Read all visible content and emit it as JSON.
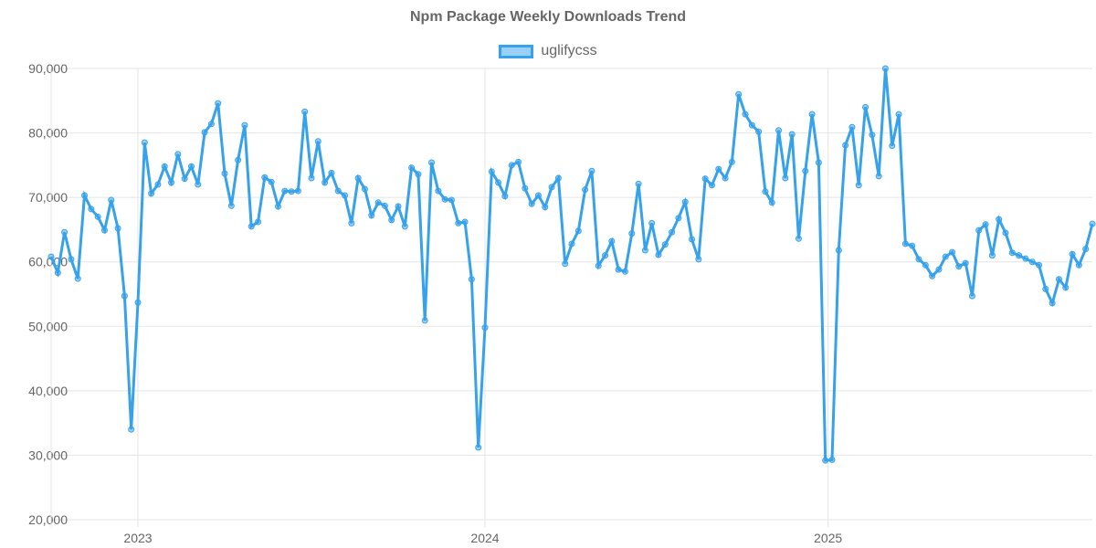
{
  "chart_data": {
    "type": "line",
    "title": "Npm Package Weekly Downloads Trend",
    "xlabel": "",
    "ylabel": "",
    "ylim": [
      20000,
      90000
    ],
    "y_ticks": [
      "20,000",
      "30,000",
      "40,000",
      "50,000",
      "60,000",
      "70,000",
      "80,000",
      "90,000"
    ],
    "y_tick_values": [
      20000,
      30000,
      40000,
      50000,
      60000,
      70000,
      80000,
      90000
    ],
    "x_ticks": [
      {
        "label": "2023",
        "index": 13
      },
      {
        "label": "2024",
        "index": 65
      },
      {
        "label": "2025",
        "index": 116.4
      }
    ],
    "grid": true,
    "legend_position": "top-center",
    "color": "#36a2eb",
    "series": [
      {
        "name": "uglifycss",
        "values": [
          60800,
          58300,
          64600,
          60400,
          57400,
          70300,
          68200,
          67000,
          64900,
          69600,
          65200,
          54700,
          34000,
          53700,
          78500,
          70600,
          72000,
          74800,
          72300,
          76700,
          72900,
          74800,
          72000,
          80100,
          81400,
          84600,
          73700,
          68700,
          75800,
          81200,
          65500,
          66200,
          73100,
          72400,
          68600,
          71000,
          70900,
          71000,
          83300,
          73000,
          78700,
          72300,
          73800,
          71000,
          70300,
          66000,
          73000,
          71300,
          67200,
          69200,
          68700,
          66500,
          68600,
          65500,
          74600,
          73600,
          50900,
          75400,
          71000,
          69700,
          69600,
          66000,
          66200,
          57300,
          31200,
          49800,
          74000,
          72300,
          70200,
          75000,
          75500,
          71400,
          69000,
          70300,
          68500,
          71600,
          73000,
          59700,
          62800,
          64800,
          71200,
          74100,
          59400,
          61000,
          63200,
          58800,
          58500,
          64400,
          72100,
          61800,
          66000,
          61100,
          62700,
          64600,
          66800,
          69300,
          63500,
          60400,
          72900,
          71900,
          74400,
          73000,
          75500,
          86000,
          82900,
          81200,
          80200,
          70900,
          69200,
          80400,
          73000,
          79800,
          63600,
          74100,
          82900,
          75400,
          29200,
          29300,
          61800,
          78100,
          80900,
          71900,
          84000,
          79700,
          73300,
          90000,
          78000,
          82900,
          62800,
          62500,
          60400,
          59500,
          57800,
          58800,
          60800,
          61500,
          59300,
          59800,
          54700,
          64900,
          65800,
          61000,
          66600,
          64500,
          61400,
          61000,
          60500,
          60000,
          59500,
          55800,
          53600,
          57300,
          56000,
          61200,
          59500,
          62000,
          65900
        ]
      }
    ]
  }
}
